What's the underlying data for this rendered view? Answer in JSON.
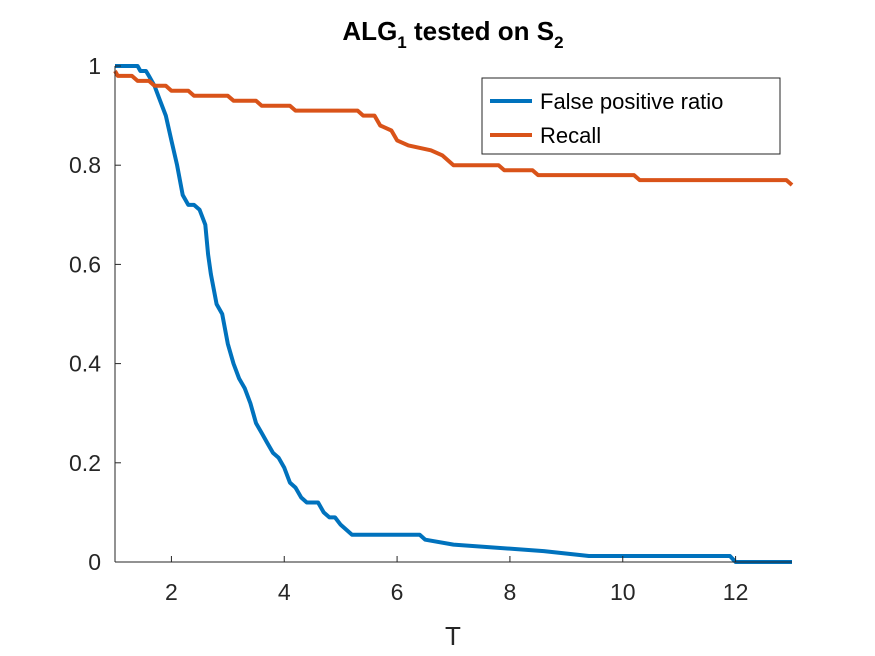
{
  "chart_data": {
    "type": "line",
    "title": {
      "prefix": "ALG",
      "prefix_sub": "1",
      "middle": " tested on S",
      "suffix_sub": "2"
    },
    "xlabel": "T",
    "ylabel": "",
    "xlim": [
      1,
      13
    ],
    "ylim": [
      0,
      1
    ],
    "xticks": [
      2,
      4,
      6,
      8,
      10,
      12
    ],
    "yticks": [
      0,
      0.2,
      0.4,
      0.6,
      0.8,
      1
    ],
    "xtick_labels": [
      "2",
      "4",
      "6",
      "8",
      "10",
      "12"
    ],
    "ytick_labels": [
      "0",
      "0.2",
      "0.4",
      "0.6",
      "0.8",
      "1"
    ],
    "grid": false,
    "legend_position": "top-right",
    "series": [
      {
        "name": "False positive ratio",
        "color": "#0072BD",
        "x": [
          1,
          1.1,
          1.4,
          1.45,
          1.55,
          1.6,
          1.7,
          1.8,
          1.9,
          2.0,
          2.1,
          2.2,
          2.3,
          2.4,
          2.5,
          2.6,
          2.65,
          2.7,
          2.8,
          2.9,
          3.0,
          3.1,
          3.2,
          3.3,
          3.4,
          3.5,
          3.6,
          3.7,
          3.8,
          3.9,
          4.0,
          4.1,
          4.2,
          4.3,
          4.4,
          4.6,
          4.7,
          4.8,
          4.9,
          5.0,
          5.2,
          6.4,
          6.5,
          7.0,
          8.6,
          9.4,
          11.9,
          12.0,
          13
        ],
        "values": [
          1.0,
          1.0,
          1.0,
          0.99,
          0.99,
          0.98,
          0.96,
          0.93,
          0.9,
          0.85,
          0.8,
          0.74,
          0.72,
          0.72,
          0.71,
          0.68,
          0.62,
          0.58,
          0.52,
          0.5,
          0.44,
          0.4,
          0.37,
          0.35,
          0.32,
          0.28,
          0.26,
          0.24,
          0.22,
          0.21,
          0.19,
          0.16,
          0.15,
          0.13,
          0.12,
          0.12,
          0.1,
          0.09,
          0.09,
          0.075,
          0.055,
          0.055,
          0.045,
          0.035,
          0.022,
          0.012,
          0.012,
          0.0,
          0.0
        ]
      },
      {
        "name": "Recall",
        "color": "#D95319",
        "x": [
          1,
          1.05,
          1.1,
          1.3,
          1.4,
          1.6,
          1.7,
          1.9,
          2.0,
          2.3,
          2.4,
          3.0,
          3.1,
          3.5,
          3.6,
          4.1,
          4.2,
          5.3,
          5.4,
          5.6,
          5.7,
          5.9,
          6.0,
          6.2,
          6.6,
          6.8,
          7.0,
          7.8,
          7.9,
          8.4,
          8.5,
          10.2,
          10.3,
          12.9,
          13
        ],
        "values": [
          0.99,
          0.98,
          0.98,
          0.98,
          0.97,
          0.97,
          0.96,
          0.96,
          0.95,
          0.95,
          0.94,
          0.94,
          0.93,
          0.93,
          0.92,
          0.92,
          0.91,
          0.91,
          0.9,
          0.9,
          0.88,
          0.87,
          0.85,
          0.84,
          0.83,
          0.82,
          0.8,
          0.8,
          0.79,
          0.79,
          0.78,
          0.78,
          0.77,
          0.77,
          0.76
        ]
      }
    ]
  }
}
